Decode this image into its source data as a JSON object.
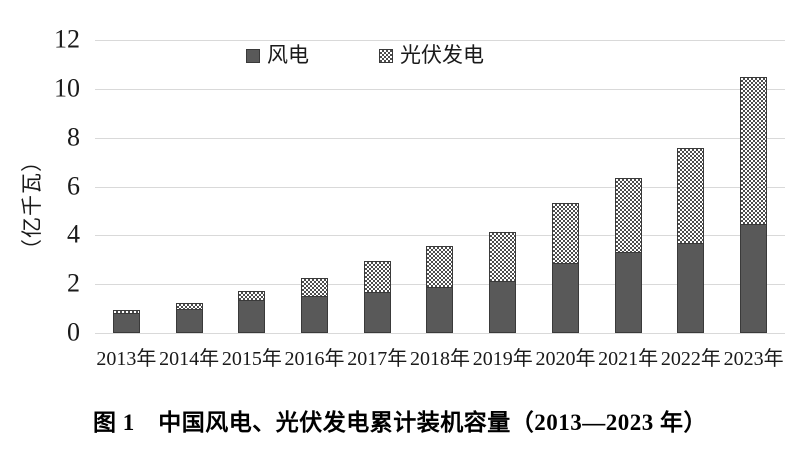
{
  "colors": {
    "wind_fill": "#595959",
    "bar_border": "#3a3a3a",
    "pattern_dot": "#4d4d4d",
    "gridline": "#d9d9d9",
    "background": "#ffffff",
    "text": "#1a1a1a"
  },
  "chart_data": {
    "type": "bar",
    "stacked": true,
    "title": "图 1　中国风电、光伏发电累计装机容量（2013—2023 年）",
    "ylabel": "（亿千瓦）",
    "xlabel": "",
    "categories": [
      "2013年",
      "2014年",
      "2015年",
      "2016年",
      "2017年",
      "2018年",
      "2019年",
      "2020年",
      "2021年",
      "2022年",
      "2023年"
    ],
    "series": [
      {
        "name": "风电",
        "values": [
          0.77,
          0.96,
          1.31,
          1.49,
          1.64,
          1.84,
          2.1,
          2.81,
          3.28,
          3.65,
          4.41
        ]
      },
      {
        "name": "光伏发电",
        "values": [
          0.19,
          0.28,
          0.43,
          0.77,
          1.3,
          1.74,
          2.04,
          2.53,
          3.06,
          3.93,
          6.09
        ]
      }
    ],
    "ylim": [
      0,
      12
    ],
    "ytick_interval": 2,
    "yticks": [
      "0",
      "2",
      "4",
      "6",
      "8",
      "10",
      "12"
    ],
    "grid": true,
    "legend_position": "top"
  }
}
